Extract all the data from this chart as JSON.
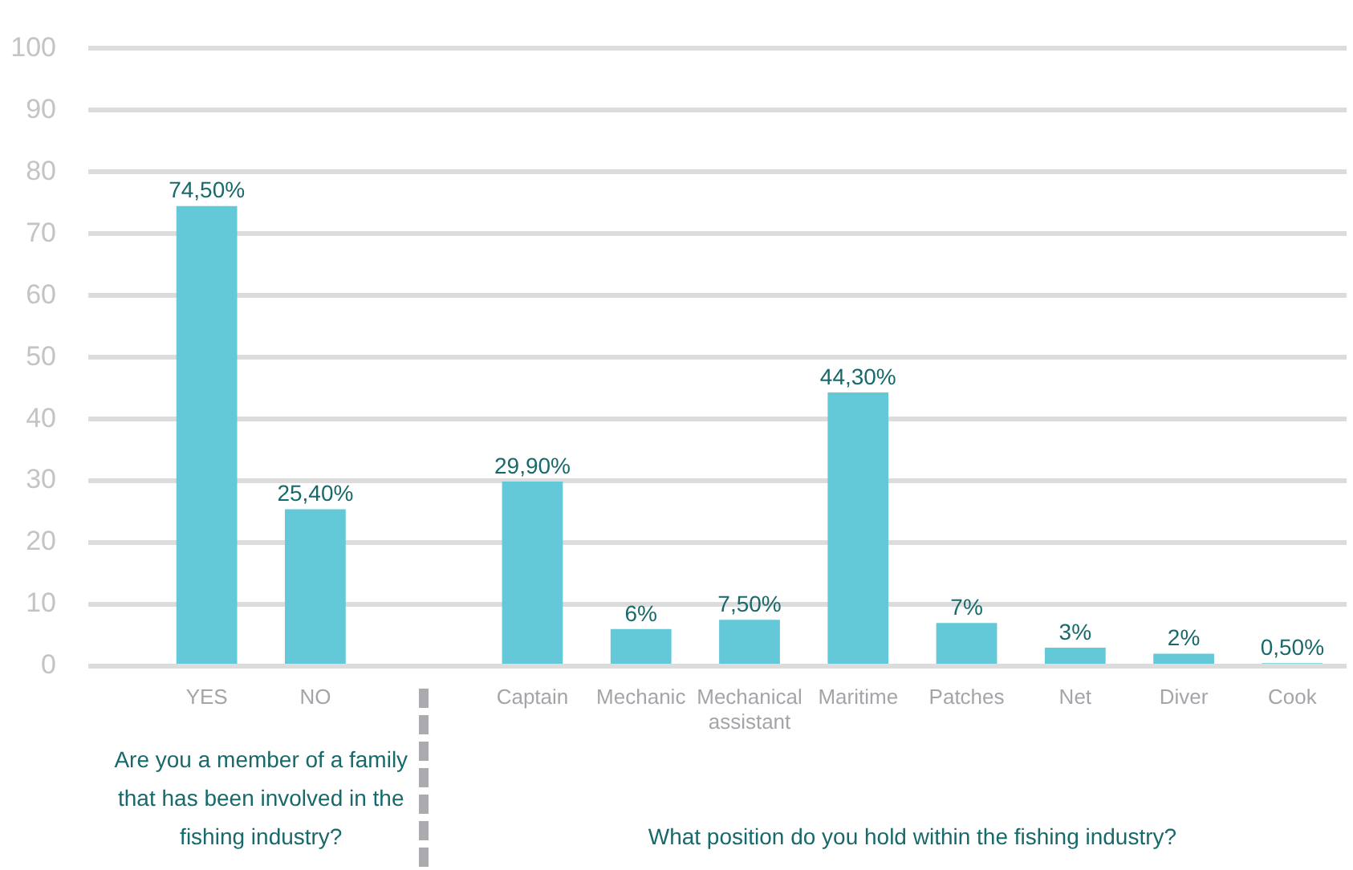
{
  "chart_data": {
    "type": "bar",
    "categories": [
      "YES",
      "NO",
      null,
      "Captain",
      "Mechanic",
      "Mechanical assistant",
      "Maritime",
      "Patches",
      "Net",
      "Diver",
      "Cook"
    ],
    "values": [
      74.5,
      25.4,
      null,
      29.9,
      6,
      7.5,
      44.3,
      7,
      3,
      2,
      0.5
    ],
    "value_labels": [
      "74,50%",
      "25,40%",
      null,
      "29,90%",
      "6%",
      "7,50%",
      "44,30%",
      "7%",
      "3%",
      "2%",
      "0,50%"
    ],
    "color": "#63c9d9",
    "ylim": [
      0,
      100
    ],
    "yticks": [
      0,
      10,
      20,
      30,
      40,
      50,
      60,
      70,
      80,
      90,
      100
    ],
    "grid": "y",
    "annotations": [
      "Are you a member of a family that has been involved in the fishing industry?",
      "What position do you hold within the fishing industry?"
    ]
  }
}
